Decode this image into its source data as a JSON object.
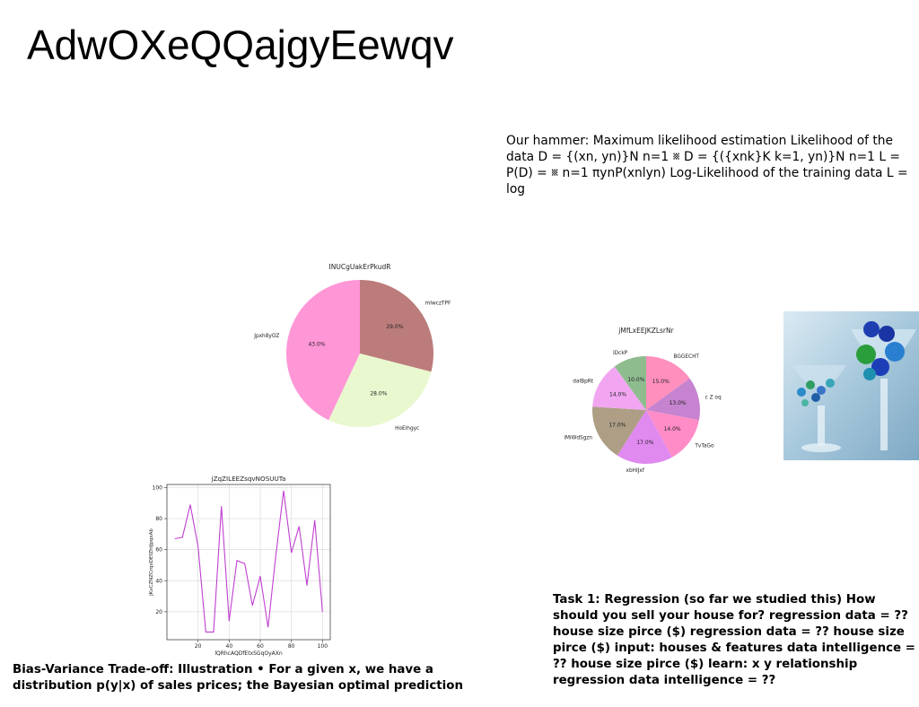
{
  "slide": {
    "title": "AdwOXeQQajgyEewqv",
    "text_top": "Our hammer: Maximum likelihood estimation Likelihood of the data D = {(xn, yn)}N n=1 ␧ D = {({xnk}K k=1, yn)}N n=1 L = P(D) = ␧ n=1 πynP(xnlyn) Log-Likelihood of the training data L = log",
    "text_right": "Task 1: Regression (so far we studied this) How should you sell your house for? regression data = ?? house size pirce ($) regression data = ?? house size pirce ($) input: houses & features data intelligence = ?? house size pirce ($) learn: x y relationship regression data intelligence = ??",
    "text_left": "Bias-Variance Trade-off: Illustration • For a given x, we have a distribution p(y|x) of sales prices; the Bayesian optimal prediction",
    "photo_icon": "glass-bowls-photo"
  },
  "chart_data": [
    {
      "type": "pie",
      "title": "INUCgUakErPkudR",
      "labels": [
        "mIwczTPF",
        "HoEihgyc",
        "Jpxh8yOZ"
      ],
      "values": [
        29.0,
        28.0,
        43.0
      ],
      "colors": [
        "#bc7c7c",
        "#e9f8cf",
        "#ff96d6"
      ]
    },
    {
      "type": "pie",
      "title": "jMfLxEEJKZLsrNr",
      "labels": [
        "BGGECHT",
        "c Z oq",
        "TvTaGo",
        "xbHIJxf",
        "lMiWdSgzn",
        "dalBpRt",
        "IDckP"
      ],
      "values": [
        15.0,
        13.0,
        14.0,
        17.0,
        17.0,
        14.0,
        10.0
      ],
      "colors": [
        "#ff8fbd",
        "#c683cf",
        "#ff8cc7",
        "#e08af0",
        "#ad9e85",
        "#f2a6f2",
        "#8fbc8f"
      ]
    },
    {
      "type": "line",
      "title": "jZqZILEEZsqvNOSUUTa",
      "xlabel": "lQRhcAQDfEtxSGqOyAXn",
      "ylabel": "jKvCZNZCrqxDEfZhtJpqxAb",
      "x": [
        5,
        10,
        15,
        20,
        25,
        30,
        35,
        40,
        45,
        50,
        55,
        60,
        65,
        70,
        75,
        80,
        85,
        90,
        95,
        100
      ],
      "y": [
        67,
        68,
        89,
        62,
        7,
        7,
        88,
        14,
        53,
        51,
        24,
        43,
        10,
        56,
        98,
        58,
        75,
        37,
        79,
        20
      ],
      "xticks": [
        20,
        40,
        60,
        80,
        100
      ],
      "yticks": [
        20,
        40,
        60,
        80,
        100
      ],
      "xlim": [
        0,
        105
      ],
      "ylim": [
        2,
        102
      ],
      "grid": true,
      "color": "#bf3fd0"
    }
  ]
}
